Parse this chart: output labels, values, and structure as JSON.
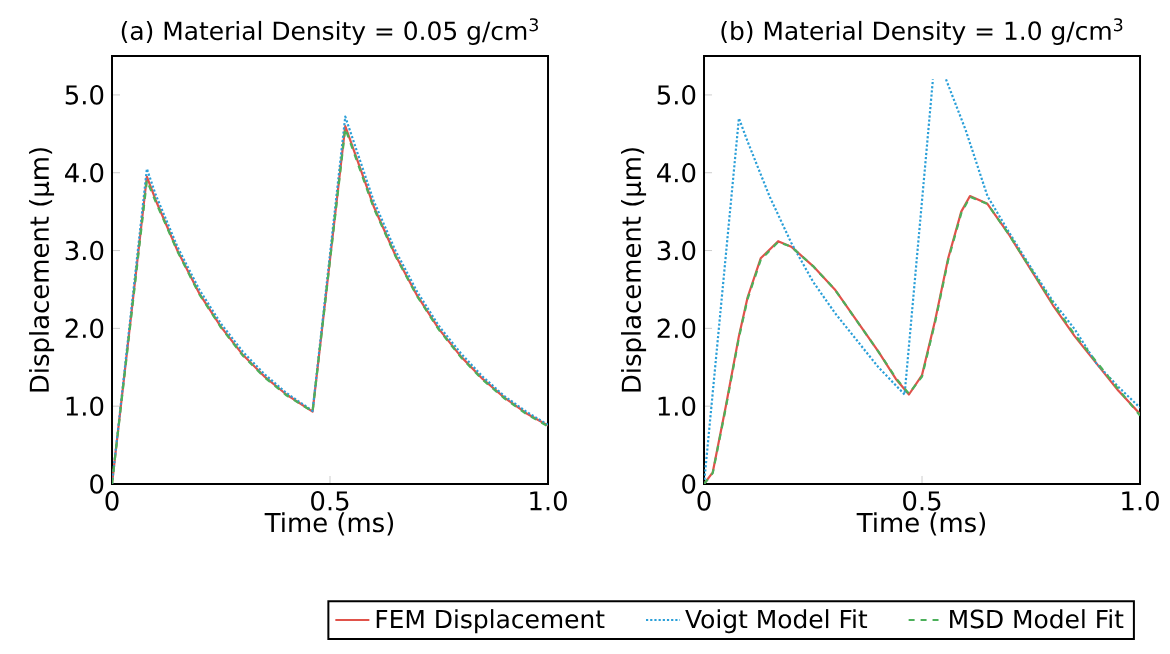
{
  "chart_data": [
    {
      "type": "line",
      "title": "(a) Material Density = 0.05 g/cm$^{3}$",
      "xlabel": "Time (ms)",
      "ylabel": "Displacement (µm)",
      "xlim": [
        0,
        1
      ],
      "ylim": [
        0,
        5.5
      ],
      "xticks": [
        0,
        0.5,
        {
          "value": 1,
          "label": "1.0"
        }
      ],
      "yticks": [
        0,
        {
          "value": 1,
          "label": "1.0"
        },
        {
          "value": 2,
          "label": "2.0"
        },
        {
          "value": 3,
          "label": "3.0"
        },
        {
          "value": 4,
          "label": "4.0"
        },
        {
          "value": 5,
          "label": "5.0"
        }
      ],
      "grid": false,
      "legend": "bottom",
      "series": [
        {
          "name": "FEM Displacement",
          "color": "#e0524a",
          "line_style": "solid",
          "x": [
            0,
            0.08,
            0.1,
            0.15,
            0.2,
            0.25,
            0.3,
            0.35,
            0.4,
            0.46,
            0.535,
            0.6,
            0.65,
            0.7,
            0.75,
            0.8,
            0.85,
            0.9,
            0.95,
            1.0
          ],
          "values": [
            0,
            3.95,
            3.65,
            3.0,
            2.45,
            2.02,
            1.66,
            1.38,
            1.15,
            0.93,
            4.6,
            3.57,
            2.94,
            2.42,
            1.99,
            1.64,
            1.35,
            1.11,
            0.91,
            0.75
          ]
        },
        {
          "name": "Voigt Model Fit",
          "color": "#2a9fd8",
          "line_style": "dotted",
          "x": [
            0,
            0.08,
            0.1,
            0.15,
            0.2,
            0.25,
            0.3,
            0.35,
            0.4,
            0.46,
            0.535,
            0.6,
            0.65,
            0.7,
            0.75,
            0.8,
            0.85,
            0.9,
            0.95,
            1.0
          ],
          "values": [
            0,
            4.05,
            3.72,
            3.05,
            2.5,
            2.06,
            1.7,
            1.41,
            1.17,
            0.94,
            4.72,
            3.64,
            3.0,
            2.47,
            2.03,
            1.68,
            1.38,
            1.13,
            0.93,
            0.76
          ]
        },
        {
          "name": "MSD Model Fit",
          "color": "#4cb05a",
          "line_style": "dashed",
          "x": [
            0,
            0.08,
            0.1,
            0.15,
            0.2,
            0.25,
            0.3,
            0.35,
            0.4,
            0.46,
            0.535,
            0.6,
            0.65,
            0.7,
            0.75,
            0.8,
            0.85,
            0.9,
            0.95,
            1.0
          ],
          "values": [
            0,
            3.9,
            3.63,
            2.99,
            2.44,
            2.01,
            1.65,
            1.37,
            1.14,
            0.93,
            4.57,
            3.55,
            2.93,
            2.41,
            1.98,
            1.63,
            1.34,
            1.1,
            0.9,
            0.74
          ]
        }
      ]
    },
    {
      "type": "line",
      "title": "(b) Material Density = 1.0 g/cm$^{3}$",
      "xlabel": "Time (ms)",
      "ylabel": "Displacement (µm)",
      "xlim": [
        0,
        1
      ],
      "ylim": [
        0,
        5.5
      ],
      "xticks": [
        0,
        0.5,
        {
          "value": 1,
          "label": "1.0"
        }
      ],
      "yticks": [
        0,
        {
          "value": 1,
          "label": "1.0"
        },
        {
          "value": 2,
          "label": "2.0"
        },
        {
          "value": 3,
          "label": "3.0"
        },
        {
          "value": 4,
          "label": "4.0"
        },
        {
          "value": 5,
          "label": "5.0"
        }
      ],
      "grid": false,
      "series": [
        {
          "color": "#e0524a",
          "line_style": "solid",
          "x": [
            0,
            0.02,
            0.05,
            0.08,
            0.1,
            0.13,
            0.17,
            0.2,
            0.25,
            0.3,
            0.35,
            0.4,
            0.44,
            0.47,
            0.5,
            0.53,
            0.56,
            0.59,
            0.61,
            0.65,
            0.7,
            0.75,
            0.8,
            0.85,
            0.9,
            0.95,
            1.0
          ],
          "values": [
            0,
            0.15,
            1.0,
            1.9,
            2.4,
            2.9,
            3.12,
            3.05,
            2.8,
            2.5,
            2.1,
            1.7,
            1.35,
            1.15,
            1.4,
            2.1,
            2.9,
            3.5,
            3.7,
            3.6,
            3.2,
            2.75,
            2.3,
            1.9,
            1.55,
            1.2,
            0.9
          ]
        },
        {
          "color": "#2a9fd8",
          "line_style": "dotted",
          "x": [
            0,
            0.08,
            0.1,
            0.15,
            0.2,
            0.25,
            0.3,
            0.35,
            0.4,
            0.46,
            0.525,
            0.535,
            0.555,
            0.6,
            0.65,
            0.7,
            0.75,
            0.8,
            0.85,
            0.9,
            0.95,
            1.0
          ],
          "values": [
            0,
            4.7,
            4.4,
            3.7,
            3.1,
            2.6,
            2.2,
            1.85,
            1.5,
            1.15,
            5.2,
            null,
            5.2,
            4.55,
            3.7,
            3.23,
            2.78,
            2.35,
            1.99,
            1.55,
            1.25,
            0.98
          ]
        },
        {
          "color": "#4cb05a",
          "line_style": "dashed",
          "x": [
            0,
            0.02,
            0.05,
            0.08,
            0.1,
            0.13,
            0.17,
            0.2,
            0.25,
            0.3,
            0.35,
            0.4,
            0.44,
            0.47,
            0.5,
            0.53,
            0.56,
            0.59,
            0.61,
            0.65,
            0.7,
            0.75,
            0.8,
            0.85,
            0.9,
            0.95,
            1.0
          ],
          "values": [
            0,
            0.14,
            0.98,
            1.88,
            2.38,
            2.88,
            3.11,
            3.05,
            2.8,
            2.5,
            2.1,
            1.7,
            1.36,
            1.16,
            1.38,
            2.08,
            2.88,
            3.48,
            3.69,
            3.6,
            3.2,
            2.76,
            2.32,
            1.92,
            1.57,
            1.22,
            0.88
          ]
        }
      ]
    }
  ]
}
